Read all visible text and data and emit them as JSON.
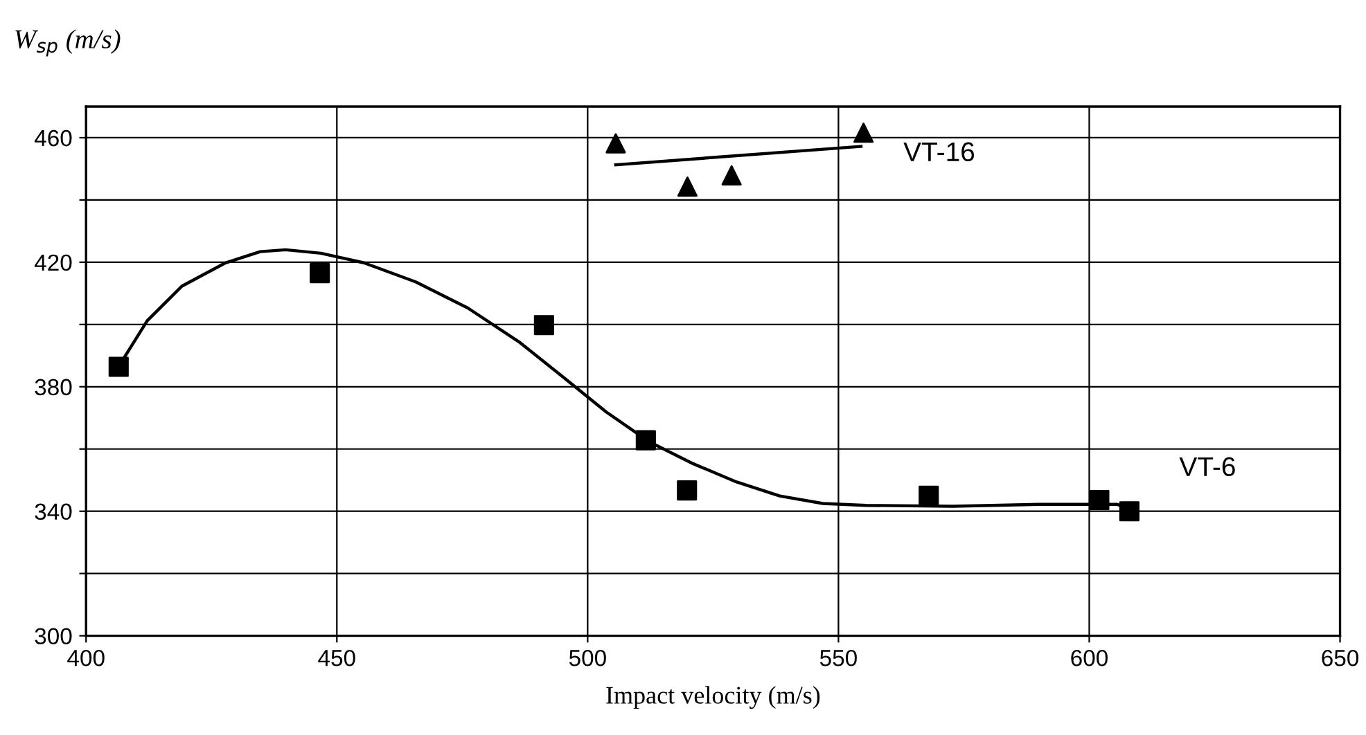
{
  "chart_data": {
    "type": "scatter",
    "xlabel": "Impact velocity (m/s)",
    "ylabel": "W$_{sp}$ (m/s)",
    "xlim": [
      400,
      650
    ],
    "xticks": [
      400,
      450,
      500,
      550,
      600,
      650
    ],
    "ylim": [
      300,
      470
    ],
    "yticks": [
      300,
      {
        "value": 320,
        "label": null
      },
      340,
      {
        "value": 360,
        "label": null
      },
      380,
      {
        "value": 400,
        "label": null
      },
      420,
      {
        "value": 440,
        "label": null
      },
      460
    ],
    "grid": true,
    "series": [
      {
        "marker": "square",
        "color": "#000000",
        "x": [
          406.5,
          446.6,
          491.3,
          511.6,
          519.8,
          568,
          602,
          608
        ],
        "values": [
          386.4,
          416.5,
          399.8,
          362.8,
          346.7,
          345,
          343.6,
          340
        ]
      },
      {
        "type": "line",
        "name": "VT-6",
        "marker": "none",
        "line_style": "solid",
        "color": "#000000",
        "x": [
          407,
          412.2,
          419.1,
          427.8,
          434.7,
          439.8,
          446.8,
          455.4,
          465.7,
          476.1,
          486.5,
          495.1,
          503.7,
          512.4,
          521,
          529.7,
          538.3,
          546.9,
          555.5,
          572.8,
          590,
          605.6,
          609.5
        ],
        "values": [
          387.8,
          401.2,
          412.3,
          419.8,
          423.4,
          424,
          422.9,
          419.8,
          413.7,
          405.3,
          394.2,
          383.1,
          371.9,
          362.2,
          355.3,
          349.4,
          344.9,
          342.5,
          341.9,
          341.6,
          342.2,
          342.2,
          340
        ]
      },
      {
        "marker": "triangle",
        "color": "#000000",
        "x": [
          505.6,
          519.9,
          528.7,
          555
        ],
        "values": [
          458.2,
          444.3,
          447.9,
          461.6
        ]
      },
      {
        "type": "line",
        "name": "VT-16",
        "marker": "none",
        "line_style": "solid",
        "color": "#000000",
        "x": [
          505.6,
          554.5
        ],
        "values": [
          451.3,
          457.2
        ]
      }
    ]
  }
}
